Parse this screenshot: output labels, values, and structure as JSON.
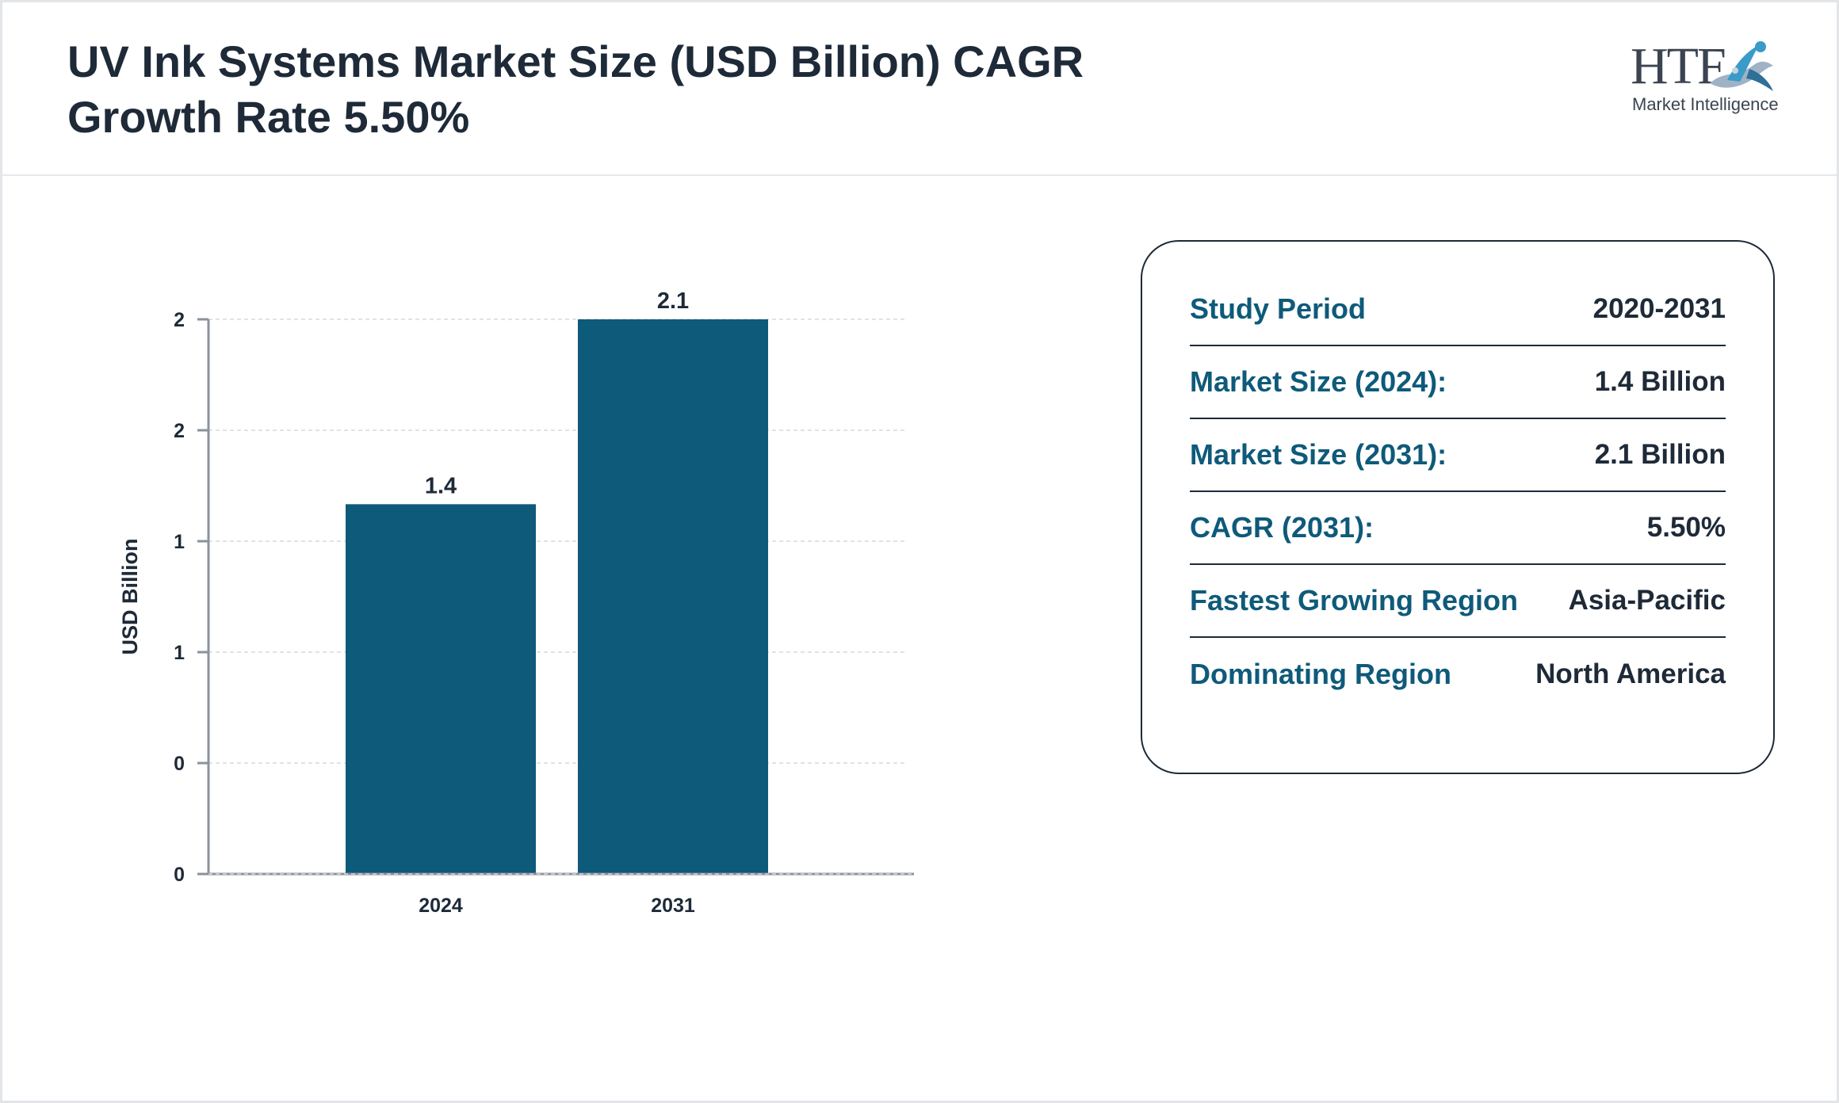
{
  "title": "UV Ink Systems Market Size (USD Billion) CAGR Growth Rate 5.50%",
  "logo": {
    "brand": "HTF",
    "tagline": "Market Intelligence",
    "icon": "htf-swoosh-logo-icon",
    "colors": {
      "text": "#3b4450",
      "accent": "#3a9bc9"
    }
  },
  "chart_data": {
    "type": "bar",
    "categories": [
      "2024",
      "2031"
    ],
    "values": [
      1.4,
      2.1
    ],
    "data_labels": [
      "1.4",
      "2.1"
    ],
    "ylabel": "USD Billion",
    "ylim": [
      0,
      2.1
    ],
    "y_ticks": [
      0,
      0.42,
      0.84,
      1.26,
      1.68,
      2.1
    ],
    "y_tick_labels": [
      "0",
      "0",
      "1",
      "1",
      "2",
      "2"
    ],
    "grid": true,
    "bar_color": "#0e5a7a"
  },
  "summary": {
    "rows": [
      {
        "label": "Study Period",
        "value": "2020-2031"
      },
      {
        "label": "Market Size (2024):",
        "value": "1.4 Billion"
      },
      {
        "label": "Market Size (2031):",
        "value": "2.1 Billion"
      },
      {
        "label": "CAGR (2031):",
        "value": "5.50%"
      },
      {
        "label": "Fastest Growing Region",
        "value": "Asia-Pacific"
      },
      {
        "label": "Dominating Region",
        "value": "North America"
      }
    ]
  }
}
